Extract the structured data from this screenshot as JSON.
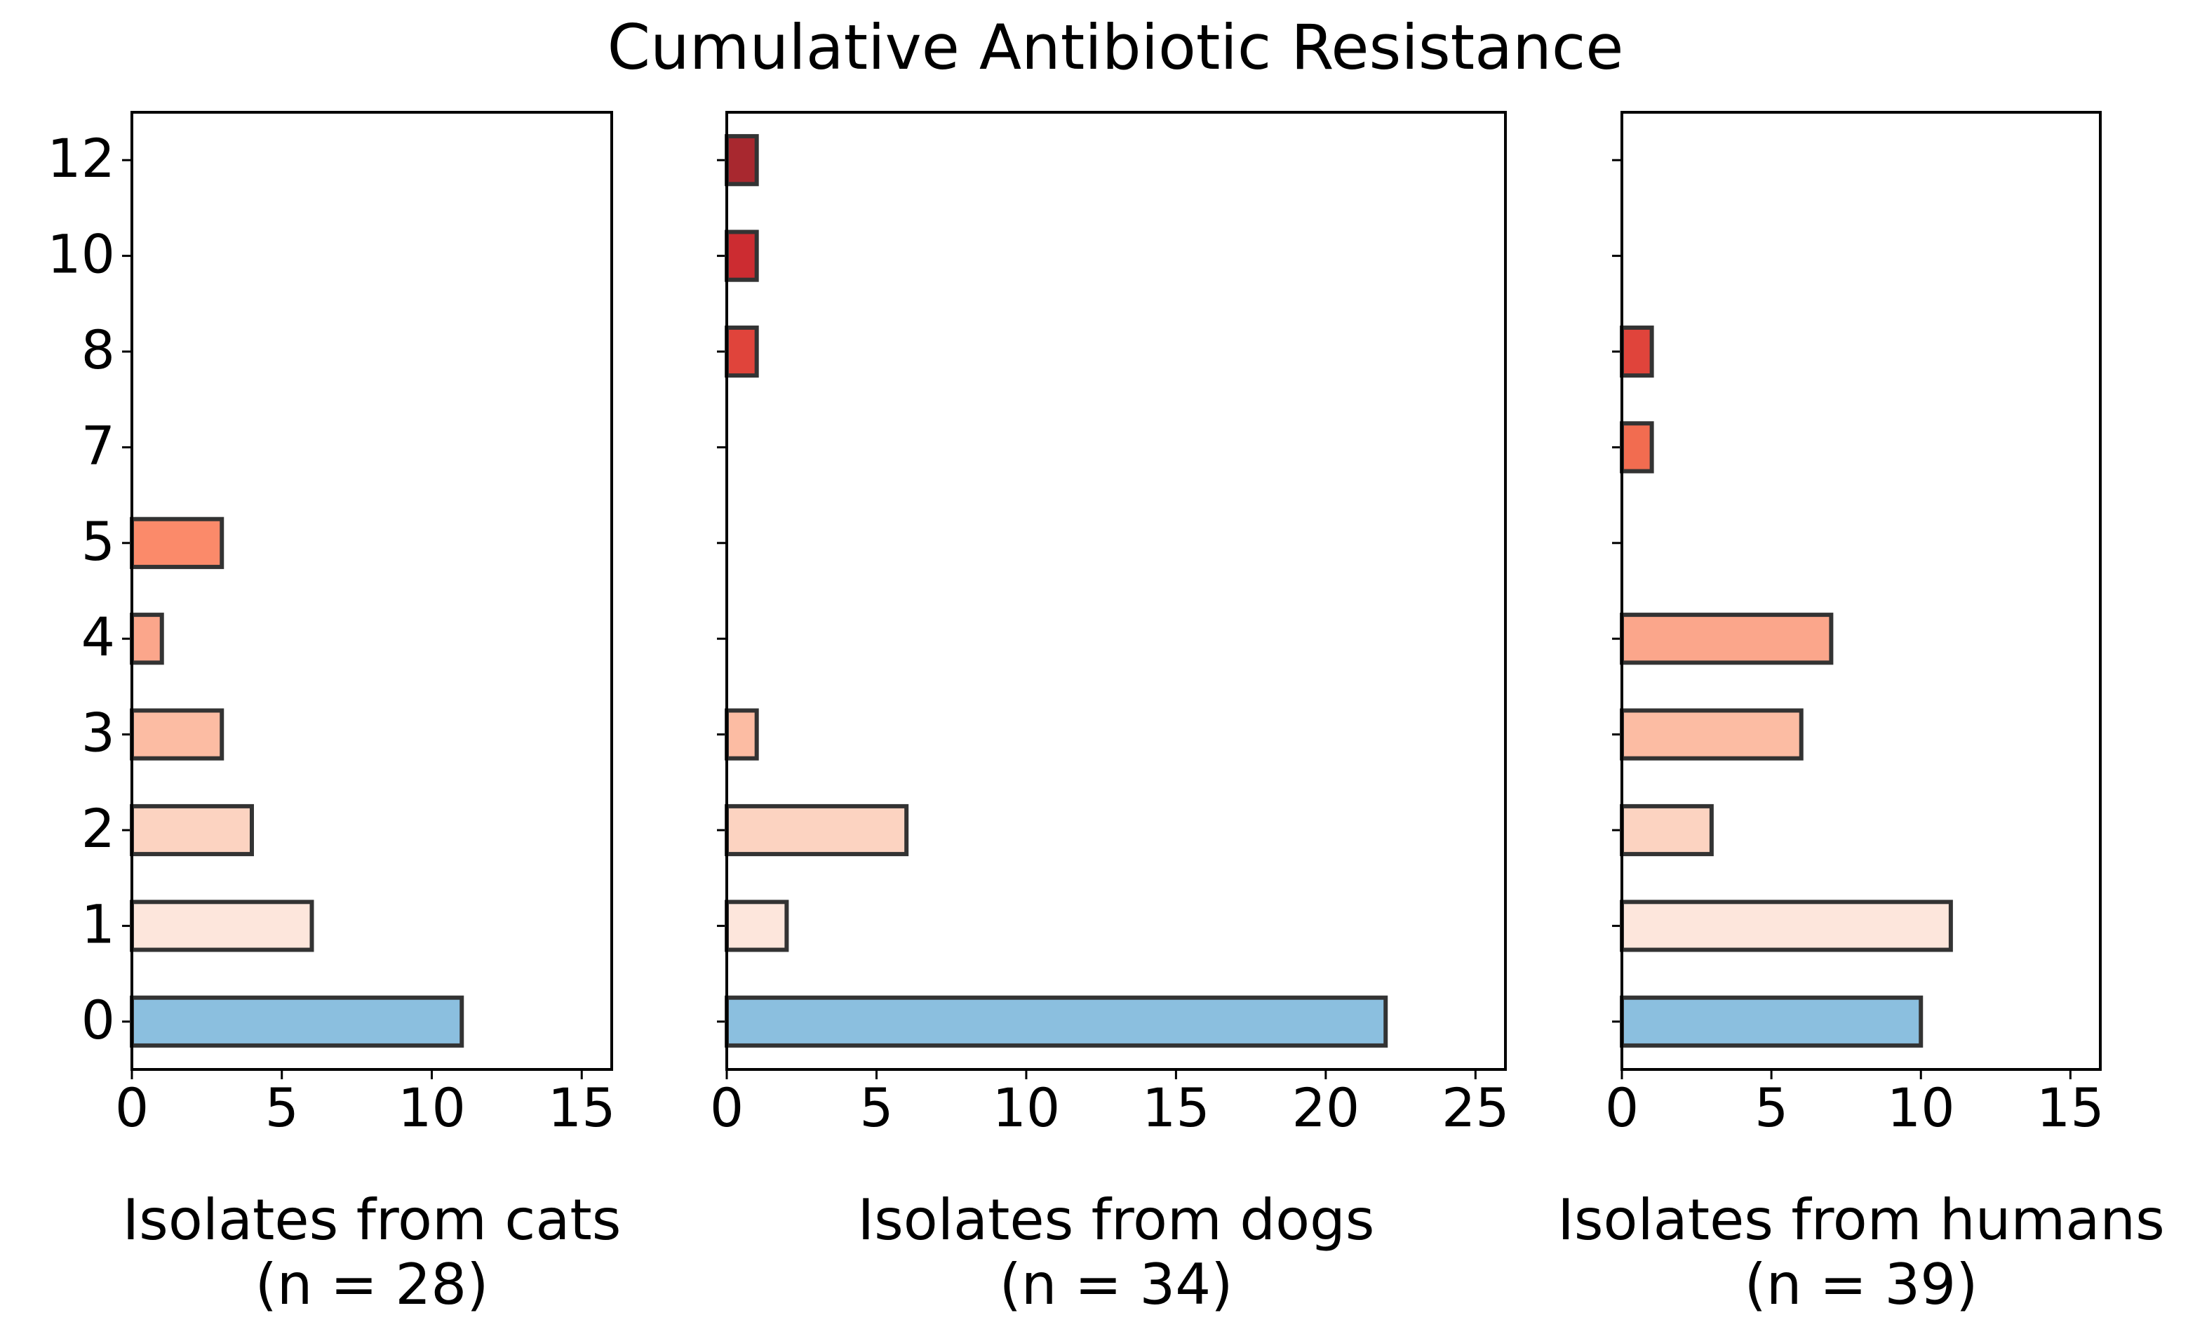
{
  "title": "Cumulative Antibiotic Resistance",
  "categories": [
    "0",
    "1",
    "2",
    "3",
    "4",
    "5",
    "7",
    "8",
    "10",
    "12"
  ],
  "colors": [
    "#8bbfdf",
    "#fde6dc",
    "#fcd3c1",
    "#fcbca3",
    "#fba68b",
    "#fb8a6a",
    "#f26c50",
    "#e0443b",
    "#cc2c31",
    "#a8282f"
  ],
  "chart_data": [
    {
      "type": "barh",
      "xlabel": "Isolates from cats",
      "note": "(n = 28)",
      "values": [
        11,
        6,
        4,
        3,
        1,
        3,
        0,
        0,
        0,
        0
      ],
      "xlim": [
        0,
        16
      ],
      "xticks": [
        0,
        5,
        10,
        15
      ],
      "ylim": [
        -0.5,
        9.5
      ]
    },
    {
      "type": "barh",
      "xlabel": "Isolates from dogs",
      "note": "(n = 34)",
      "values": [
        22,
        2,
        6,
        1,
        0,
        0,
        0,
        1,
        1,
        1
      ],
      "xlim": [
        0,
        26
      ],
      "xticks": [
        0,
        5,
        10,
        15,
        20,
        25
      ],
      "ylim": [
        -0.5,
        9.5
      ]
    },
    {
      "type": "barh",
      "xlabel": "Isolates from humans",
      "note": "(n = 39)",
      "values": [
        10,
        11,
        3,
        6,
        7,
        0,
        1,
        1,
        0,
        0
      ],
      "xlim": [
        0,
        16
      ],
      "xticks": [
        0,
        5,
        10,
        15
      ],
      "ylim": [
        -0.5,
        9.5
      ]
    }
  ]
}
